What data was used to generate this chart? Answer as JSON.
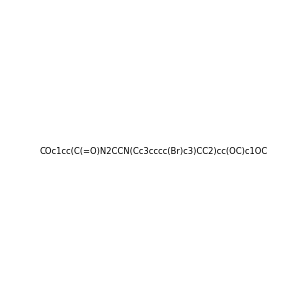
{
  "smiles": "COc1cc(C(=O)N2CCN(Cc3cccc(Br)c3)CC2)cc(OC)c1OC",
  "title": "",
  "background_color": "#f0f0f0",
  "bond_color": "#000000",
  "atom_colors": {
    "N": "#0000ff",
    "O": "#ff0000",
    "Br": "#cc7700",
    "C": "#000000"
  },
  "figsize": [
    3.0,
    3.0
  ],
  "dpi": 100
}
